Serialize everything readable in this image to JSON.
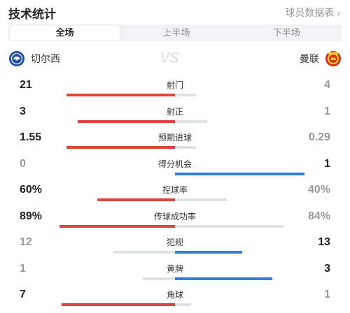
{
  "header": {
    "title": "技术统计",
    "link_label": "球员数据表",
    "link_chevron": "›"
  },
  "tabs": [
    {
      "label": "全场",
      "active": true
    },
    {
      "label": "上半场",
      "active": false
    },
    {
      "label": "下半场",
      "active": false
    }
  ],
  "teams": {
    "home": {
      "name": "切尔西",
      "crest_icon": "chelsea-crest-icon",
      "color": "#1e4fa3"
    },
    "away": {
      "name": "曼联",
      "crest_icon": "manchester-united-crest-icon",
      "color": "#da291c"
    },
    "vs_label": "VS"
  },
  "colors": {
    "leader_home": "#e0453b",
    "leader_away": "#3a7ad9",
    "trailing": "#dfe2e7",
    "leader_text": "#222222",
    "trailing_text": "#999999"
  },
  "stats": [
    {
      "label": "射门",
      "home": "21",
      "away": "4",
      "home_share": 0.84,
      "away_share": 0.16,
      "leader": "home"
    },
    {
      "label": "射正",
      "home": "3",
      "away": "1",
      "home_share": 0.75,
      "away_share": 0.25,
      "leader": "home"
    },
    {
      "label": "预期进球",
      "home": "1.55",
      "away": "0.29",
      "home_share": 0.84,
      "away_share": 0.16,
      "leader": "home"
    },
    {
      "label": "得分机会",
      "home": "0",
      "away": "1",
      "home_share": 0.0,
      "away_share": 1.0,
      "leader": "away"
    },
    {
      "label": "控球率",
      "home": "60%",
      "away": "40%",
      "home_share": 0.6,
      "away_share": 0.4,
      "leader": "home"
    },
    {
      "label": "传球成功率",
      "home": "89%",
      "away": "84%",
      "home_share": 0.89,
      "away_share": 0.84,
      "leader": "home"
    },
    {
      "label": "犯规",
      "home": "12",
      "away": "13",
      "home_share": 0.48,
      "away_share": 0.52,
      "leader": "away"
    },
    {
      "label": "黄牌",
      "home": "1",
      "away": "3",
      "home_share": 0.25,
      "away_share": 0.75,
      "leader": "away"
    },
    {
      "label": "角球",
      "home": "7",
      "away": "1",
      "home_share": 0.875,
      "away_share": 0.125,
      "leader": "home"
    }
  ]
}
